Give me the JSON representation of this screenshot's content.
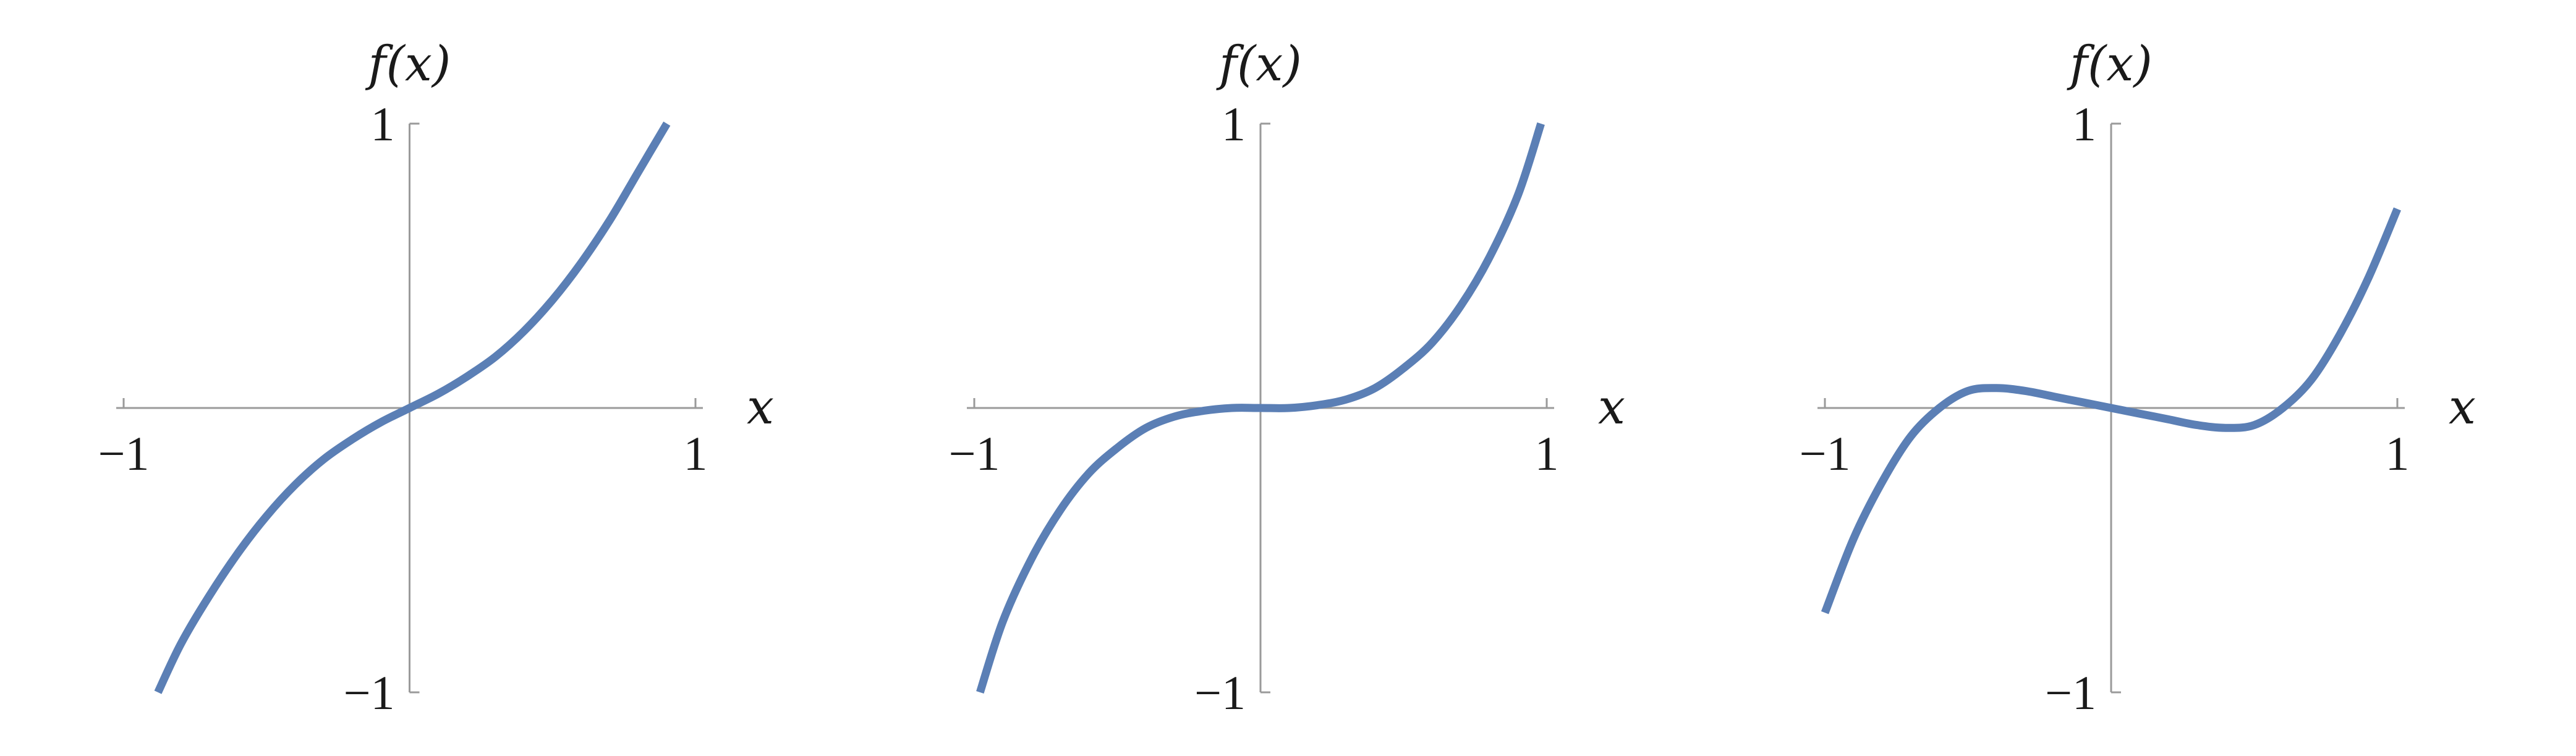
{
  "chart_data": [
    {
      "type": "line",
      "xlabel": "x",
      "ylabel": "f(x)",
      "xlim": [
        -1,
        1
      ],
      "ylim": [
        -1,
        1
      ],
      "x_ticks": [
        {
          "value": -1,
          "label": "−1"
        },
        {
          "value": 1,
          "label": "1"
        }
      ],
      "y_ticks": [
        {
          "value": 1,
          "label": "1"
        },
        {
          "value": -1,
          "label": "−1"
        }
      ],
      "series": [
        {
          "color": "#5b7fb5",
          "x": [
            -0.88,
            -0.8,
            -0.7,
            -0.6,
            -0.5,
            -0.4,
            -0.3,
            -0.2,
            -0.1,
            0,
            0.1,
            0.2,
            0.3,
            0.4,
            0.5,
            0.6,
            0.7,
            0.8,
            0.9
          ],
          "y": [
            -1.0,
            -0.83,
            -0.66,
            -0.51,
            -0.38,
            -0.27,
            -0.18,
            -0.11,
            -0.05,
            0,
            0.05,
            0.11,
            0.18,
            0.27,
            0.38,
            0.51,
            0.66,
            0.83,
            1.0
          ]
        }
      ]
    },
    {
      "type": "line",
      "xlabel": "x",
      "ylabel": "f(x)",
      "xlim": [
        -1,
        1
      ],
      "ylim": [
        -1,
        1
      ],
      "x_ticks": [
        {
          "value": -1,
          "label": "−1"
        },
        {
          "value": 1,
          "label": "1"
        }
      ],
      "y_ticks": [
        {
          "value": 1,
          "label": "1"
        },
        {
          "value": -1,
          "label": "−1"
        }
      ],
      "series": [
        {
          "color": "#5b7fb5",
          "x": [
            -0.98,
            -0.9,
            -0.8,
            -0.7,
            -0.6,
            -0.5,
            -0.4,
            -0.3,
            -0.2,
            -0.1,
            0,
            0.1,
            0.2,
            0.3,
            0.4,
            0.5,
            0.6,
            0.7,
            0.8,
            0.9,
            0.98
          ],
          "y": [
            -1.0,
            -0.75,
            -0.53,
            -0.36,
            -0.23,
            -0.14,
            -0.07,
            -0.03,
            -0.01,
            0.0,
            0,
            0.0,
            0.01,
            0.03,
            0.07,
            0.14,
            0.23,
            0.36,
            0.53,
            0.75,
            1.0
          ]
        }
      ]
    },
    {
      "type": "line",
      "xlabel": "x",
      "ylabel": "f(x)",
      "xlim": [
        -1,
        1
      ],
      "ylim": [
        -1,
        1
      ],
      "x_ticks": [
        {
          "value": -1,
          "label": "−1"
        },
        {
          "value": 1,
          "label": "1"
        }
      ],
      "y_ticks": [
        {
          "value": 1,
          "label": "1"
        },
        {
          "value": -1,
          "label": "−1"
        }
      ],
      "series": [
        {
          "color": "#5b7fb5",
          "x": [
            -1.0,
            -0.9,
            -0.8,
            -0.7,
            -0.6,
            -0.5,
            -0.4,
            -0.3,
            -0.2,
            -0.1,
            0,
            0.1,
            0.2,
            0.3,
            0.4,
            0.5,
            0.6,
            0.7,
            0.8,
            0.9,
            1.0
          ],
          "y": [
            -0.72,
            -0.46,
            -0.26,
            -0.1,
            0.0,
            0.06,
            0.07,
            0.06,
            0.04,
            0.02,
            0,
            -0.02,
            -0.04,
            -0.06,
            -0.07,
            -0.06,
            0.0,
            0.1,
            0.26,
            0.46,
            0.7
          ]
        }
      ]
    }
  ]
}
